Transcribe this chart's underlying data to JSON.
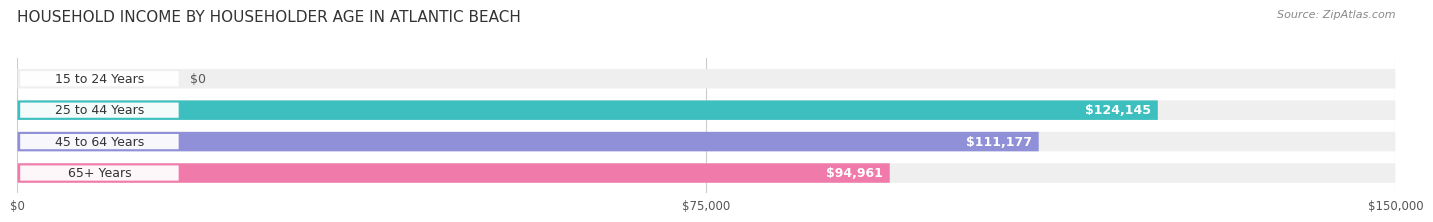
{
  "title": "HOUSEHOLD INCOME BY HOUSEHOLDER AGE IN ATLANTIC BEACH",
  "source": "Source: ZipAtlas.com",
  "categories": [
    "15 to 24 Years",
    "25 to 44 Years",
    "45 to 64 Years",
    "65+ Years"
  ],
  "values": [
    0,
    124145,
    111177,
    94961
  ],
  "bar_colors": [
    "#c5a8c8",
    "#3dbfbf",
    "#9090d8",
    "#f07aaa"
  ],
  "bar_bg_color": "#efefef",
  "value_labels": [
    "$0",
    "$124,145",
    "$111,177",
    "$94,961"
  ],
  "x_ticks": [
    0,
    75000,
    150000
  ],
  "x_tick_labels": [
    "$0",
    "$75,000",
    "$150,000"
  ],
  "xlim": [
    0,
    150000
  ],
  "title_fontsize": 11,
  "source_fontsize": 8,
  "label_fontsize": 9,
  "tick_fontsize": 8.5,
  "bar_height": 0.62,
  "bg_color": "#ffffff"
}
